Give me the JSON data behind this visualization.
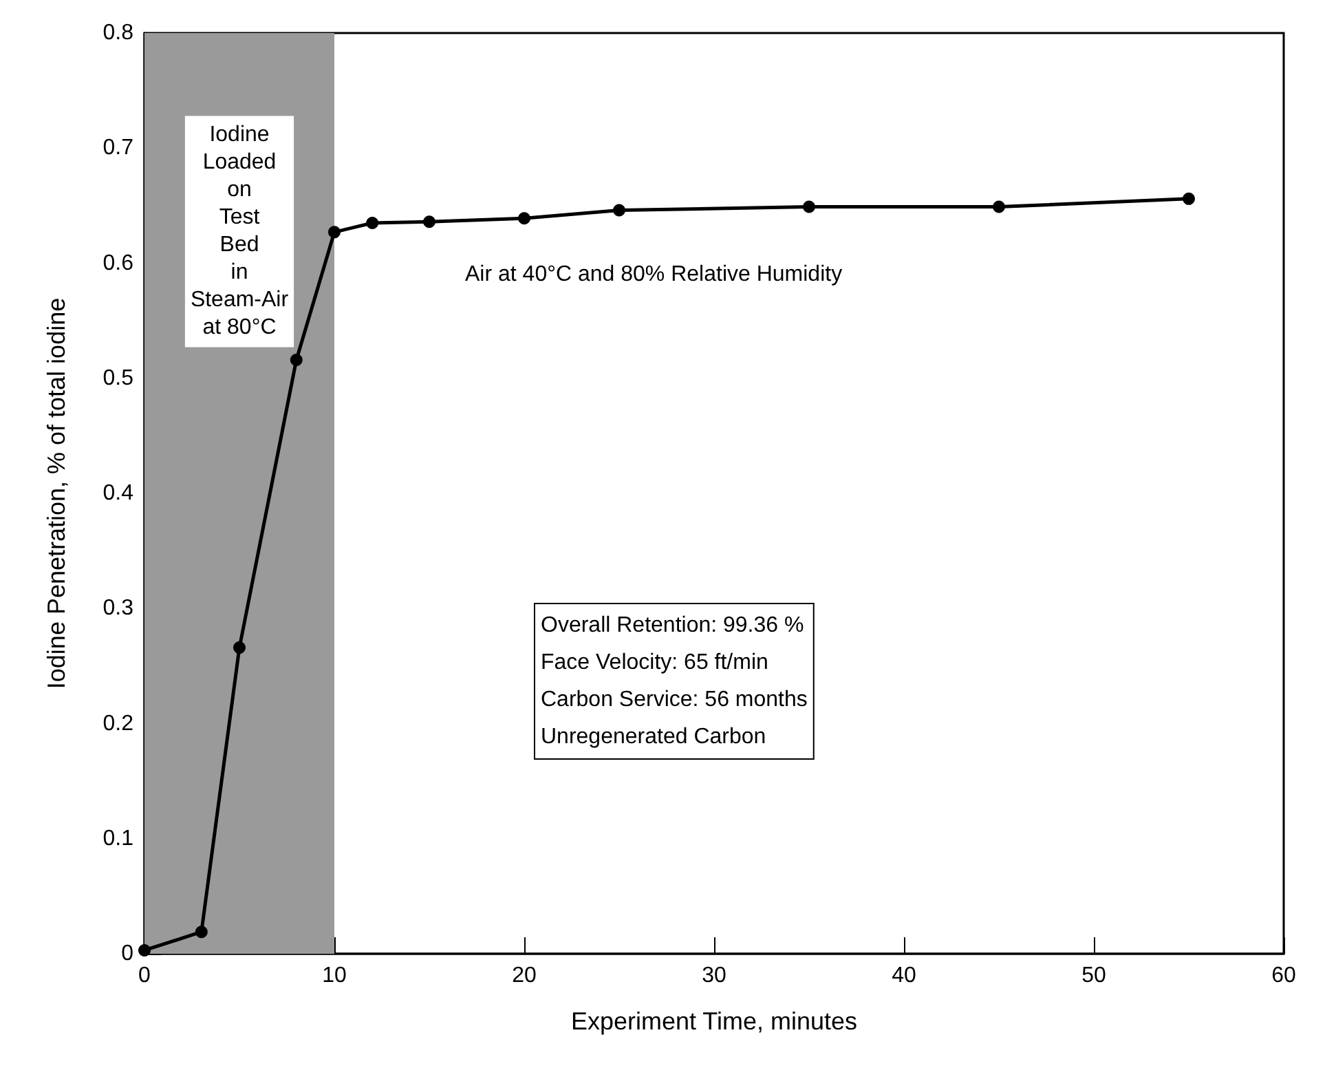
{
  "chart_data": {
    "type": "line",
    "xlabel": "Experiment Time, minutes",
    "ylabel": "Iodine Penetration, % of total iodine",
    "x": [
      0,
      3,
      5,
      8,
      10,
      12,
      15,
      20,
      25,
      35,
      45,
      55
    ],
    "series": [
      {
        "color": "#000000",
        "values": [
          0.003,
          0.019,
          0.266,
          0.516,
          0.627,
          0.635,
          0.636,
          0.639,
          0.646,
          0.649,
          0.649,
          0.656
        ]
      }
    ],
    "xlim": [
      0,
      60
    ],
    "xticks": [
      0,
      10,
      20,
      30,
      40,
      50,
      60
    ],
    "ylim": [
      0,
      0.8
    ],
    "yticks": [
      0,
      0.1,
      0.2,
      0.3,
      0.4,
      0.5,
      0.6,
      0.7,
      0.8
    ],
    "marker": "circle",
    "line_style": "solid",
    "grid": false,
    "bands": [
      {
        "axis": "x",
        "from": 0,
        "to": 10,
        "color": "#9a9a9a",
        "label": "Iodine\nLoaded\non\nTest\nBed\nin\nSteam-Air\nat 80°C"
      }
    ],
    "annotations": [
      "Air at 40°C and 80% Relative Humidity",
      "Overall Retention: 99.36 %\nFace Velocity: 65 ft/min\nCarbon Service: 56 months\nUnregenerated Carbon"
    ]
  }
}
